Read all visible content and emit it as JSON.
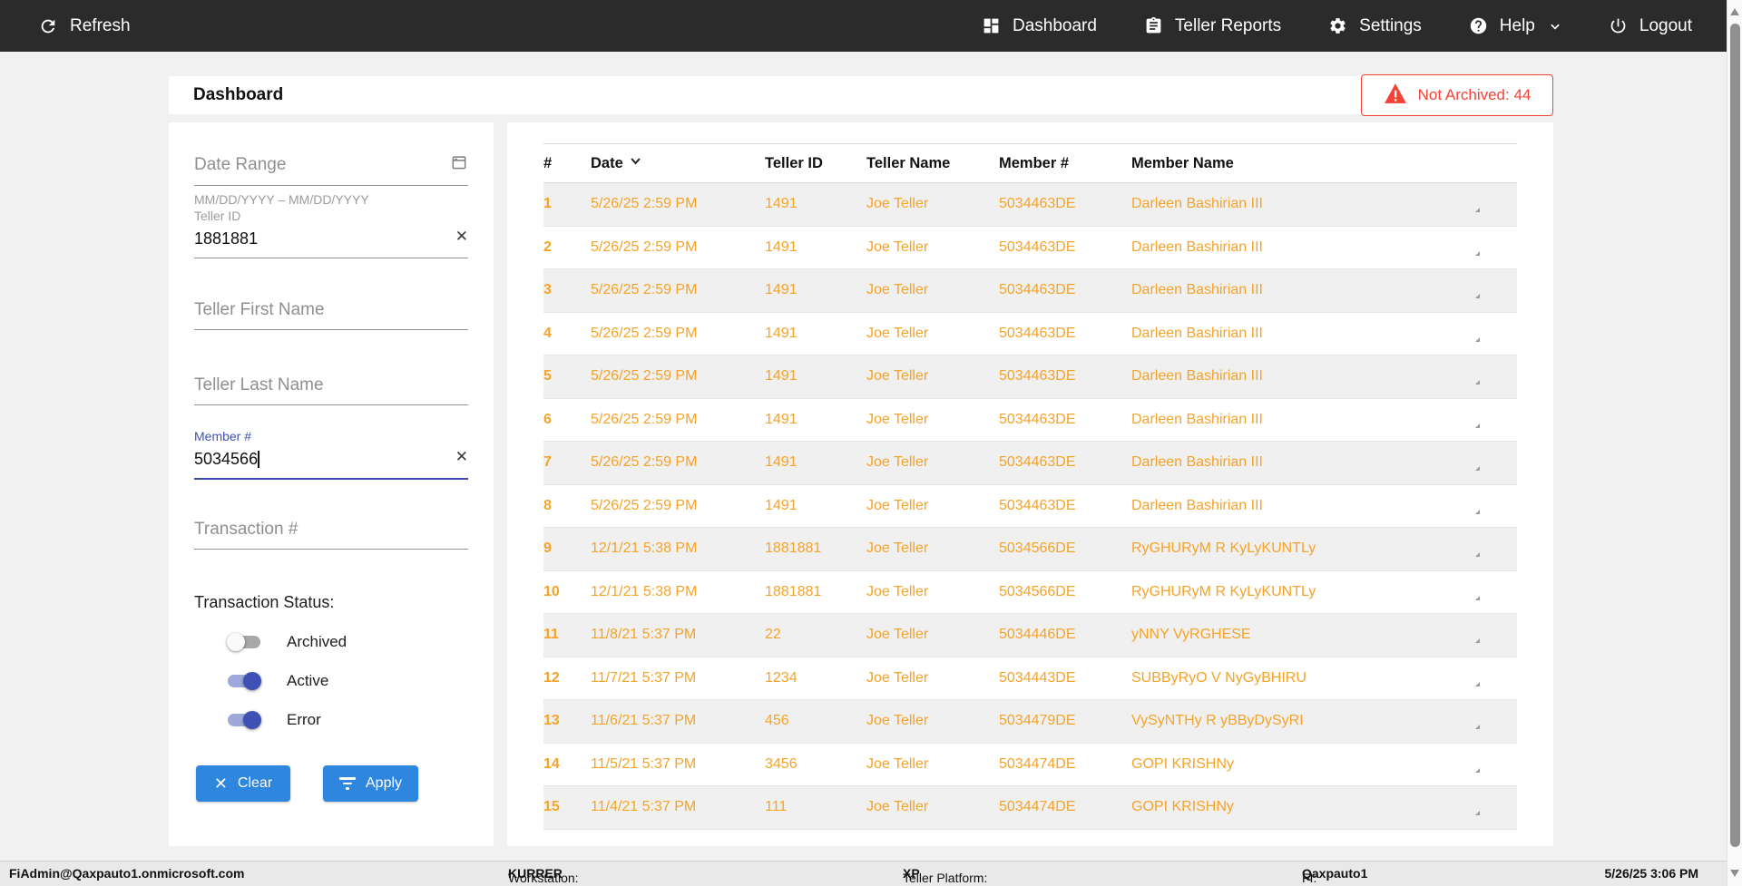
{
  "navbar": {
    "refresh_label": "Refresh",
    "items": [
      {
        "label": "Dashboard",
        "icon": "dashboard-icon"
      },
      {
        "label": "Teller Reports",
        "icon": "clipboard-icon"
      },
      {
        "label": "Settings",
        "icon": "gear-icon"
      },
      {
        "label": "Help",
        "icon": "help-icon"
      },
      {
        "label": "Logout",
        "icon": "power-icon"
      }
    ]
  },
  "header": {
    "title": "Dashboard",
    "alert_badge": "Not Archived: 44"
  },
  "filters": {
    "date_range": {
      "placeholder": "Date Range",
      "helper": "MM/DD/YYYY – MM/DD/YYYY"
    },
    "teller_id": {
      "label": "Teller ID",
      "value": "1881881"
    },
    "teller_first_name": {
      "placeholder": "Teller First Name"
    },
    "teller_last_name": {
      "placeholder": "Teller Last Name"
    },
    "member_number": {
      "label": "Member #",
      "value": "5034566"
    },
    "transaction_number": {
      "placeholder": "Transaction #"
    },
    "status": {
      "label": "Transaction Status:",
      "toggles": [
        {
          "label": "Archived",
          "on": false
        },
        {
          "label": "Active",
          "on": true
        },
        {
          "label": "Error",
          "on": true
        }
      ]
    },
    "clear_label": "Clear",
    "apply_label": "Apply"
  },
  "table": {
    "columns": [
      "#",
      "Date",
      "Teller ID",
      "Teller Name",
      "Member #",
      "Member Name"
    ],
    "sorted_column": "Date",
    "sort_direction": "desc",
    "rows": [
      {
        "num": "1",
        "date": "5/26/25 2:59 PM",
        "teller_id": "1491",
        "teller_name": "Joe Teller",
        "member": "5034463DE",
        "member_name": "Darleen Bashirian III"
      },
      {
        "num": "2",
        "date": "5/26/25 2:59 PM",
        "teller_id": "1491",
        "teller_name": "Joe Teller",
        "member": "5034463DE",
        "member_name": "Darleen Bashirian III"
      },
      {
        "num": "3",
        "date": "5/26/25 2:59 PM",
        "teller_id": "1491",
        "teller_name": "Joe Teller",
        "member": "5034463DE",
        "member_name": "Darleen Bashirian III"
      },
      {
        "num": "4",
        "date": "5/26/25 2:59 PM",
        "teller_id": "1491",
        "teller_name": "Joe Teller",
        "member": "5034463DE",
        "member_name": "Darleen Bashirian III"
      },
      {
        "num": "5",
        "date": "5/26/25 2:59 PM",
        "teller_id": "1491",
        "teller_name": "Joe Teller",
        "member": "5034463DE",
        "member_name": "Darleen Bashirian III"
      },
      {
        "num": "6",
        "date": "5/26/25 2:59 PM",
        "teller_id": "1491",
        "teller_name": "Joe Teller",
        "member": "5034463DE",
        "member_name": "Darleen Bashirian III"
      },
      {
        "num": "7",
        "date": "5/26/25 2:59 PM",
        "teller_id": "1491",
        "teller_name": "Joe Teller",
        "member": "5034463DE",
        "member_name": "Darleen Bashirian III"
      },
      {
        "num": "8",
        "date": "5/26/25 2:59 PM",
        "teller_id": "1491",
        "teller_name": "Joe Teller",
        "member": "5034463DE",
        "member_name": "Darleen Bashirian III"
      },
      {
        "num": "9",
        "date": "12/1/21 5:38 PM",
        "teller_id": "1881881",
        "teller_name": "Joe Teller",
        "member": "5034566DE",
        "member_name": "RyGHURyM R KyLyKUNTLy"
      },
      {
        "num": "10",
        "date": "12/1/21 5:38 PM",
        "teller_id": "1881881",
        "teller_name": "Joe Teller",
        "member": "5034566DE",
        "member_name": "RyGHURyM R KyLyKUNTLy"
      },
      {
        "num": "11",
        "date": "11/8/21 5:37 PM",
        "teller_id": "22",
        "teller_name": "Joe Teller",
        "member": "5034446DE",
        "member_name": "yNNY VyRGHESE"
      },
      {
        "num": "12",
        "date": "11/7/21 5:37 PM",
        "teller_id": "1234",
        "teller_name": "Joe Teller",
        "member": "5034443DE",
        "member_name": "SUBByRyO V NyGyBHIRU"
      },
      {
        "num": "13",
        "date": "11/6/21 5:37 PM",
        "teller_id": "456",
        "teller_name": "Joe Teller",
        "member": "5034479DE",
        "member_name": "VySyNTHy R yBByDySyRI"
      },
      {
        "num": "14",
        "date": "11/5/21 5:37 PM",
        "teller_id": "3456",
        "teller_name": "Joe Teller",
        "member": "5034474DE",
        "member_name": "GOPI KRISHNy"
      },
      {
        "num": "15",
        "date": "11/4/21 5:37 PM",
        "teller_id": "111",
        "teller_name": "Joe Teller",
        "member": "5034474DE",
        "member_name": "GOPI KRISHNy"
      }
    ]
  },
  "footer": {
    "user": "FiAdmin@Qaxpauto1.onmicrosoft.com",
    "workstation_label": "Workstation: ",
    "workstation": "KURRER",
    "platform_label": "Teller Platform: ",
    "platform": "XP",
    "fi_label": "FI: ",
    "fi": "Qaxpauto1",
    "datetime": "5/26/25 3:06 PM"
  },
  "colors": {
    "accent_blue": "#2e86de",
    "indigo": "#3f51b5",
    "row_orange": "#f5a329",
    "alert_red": "#f44336",
    "navbar_bg": "#2b2b2b"
  }
}
